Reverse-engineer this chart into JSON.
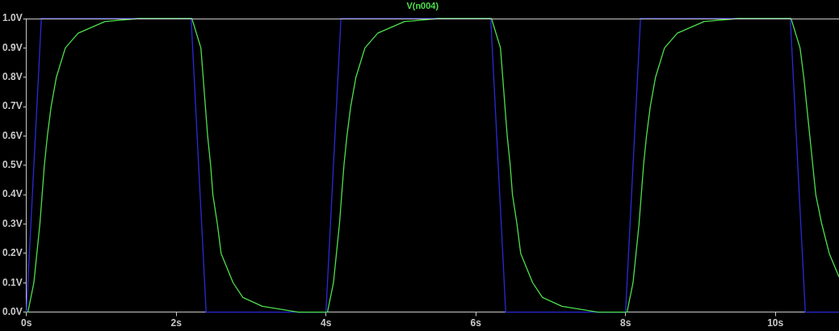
{
  "chart_data": {
    "type": "line",
    "xlim": [
      0,
      10.85
    ],
    "xticks": [
      {
        "value": 0,
        "label": "0s"
      },
      {
        "value": 2,
        "label": "2s"
      },
      {
        "value": 4,
        "label": "4s"
      },
      {
        "value": 6,
        "label": "6s"
      },
      {
        "value": 8,
        "label": "8s"
      },
      {
        "value": 10,
        "label": "10s"
      }
    ],
    "ylim": [
      0,
      1
    ],
    "yticks": [
      {
        "value": 0,
        "label": "0.0V"
      },
      {
        "value": 0.1,
        "label": "0.1V"
      },
      {
        "value": 0.2,
        "label": "0.2V"
      },
      {
        "value": 0.3,
        "label": "0.3V"
      },
      {
        "value": 0.4,
        "label": "0.4V"
      },
      {
        "value": 0.5,
        "label": "0.5V"
      },
      {
        "value": 0.6,
        "label": "0.6V"
      },
      {
        "value": 0.7,
        "label": "0.7V"
      },
      {
        "value": 0.8,
        "label": "0.8V"
      },
      {
        "value": 0.9,
        "label": "0.9V"
      },
      {
        "value": 1,
        "label": "1.0V"
      }
    ],
    "grid": false,
    "legend": "top",
    "marker": "none",
    "line_style": "solid",
    "series": [
      {
        "color": "#2a2ad8",
        "x": [
          0,
          0.2,
          2.2,
          2.4,
          4.0,
          4.2,
          6.2,
          6.4,
          8.0,
          8.2,
          10.2,
          10.4,
          10.85
        ],
        "values": [
          0,
          1,
          1,
          0,
          0,
          1,
          1,
          0,
          0,
          1,
          1,
          0,
          0
        ]
      },
      {
        "name": "V(n004)",
        "color": "#4ddf4d",
        "x": [
          0,
          0.02,
          0.1,
          0.14,
          0.18,
          0.21,
          0.24,
          0.28,
          0.33,
          0.4,
          0.52,
          0.69,
          1.05,
          1.5,
          2.21,
          2.33,
          2.36,
          2.39,
          2.42,
          2.46,
          2.49,
          2.55,
          2.6,
          2.76,
          2.89,
          3.15,
          3.63,
          4.02,
          4.1,
          4.14,
          4.18,
          4.21,
          4.24,
          4.28,
          4.33,
          4.4,
          4.52,
          4.69,
          5.05,
          5.5,
          6.21,
          6.33,
          6.36,
          6.39,
          6.42,
          6.46,
          6.49,
          6.55,
          6.6,
          6.76,
          6.89,
          7.15,
          7.63,
          8.02,
          8.1,
          8.14,
          8.18,
          8.21,
          8.24,
          8.28,
          8.33,
          8.4,
          8.52,
          8.69,
          9.05,
          9.5,
          10.21,
          10.33,
          10.38,
          10.42,
          10.46,
          10.5,
          10.54,
          10.62,
          10.72,
          10.85
        ],
        "values": [
          0,
          0,
          0.1,
          0.2,
          0.3,
          0.4,
          0.5,
          0.6,
          0.7,
          0.8,
          0.9,
          0.95,
          0.99,
          1,
          1,
          0.9,
          0.8,
          0.7,
          0.6,
          0.5,
          0.4,
          0.3,
          0.2,
          0.1,
          0.05,
          0.02,
          0,
          0,
          0.1,
          0.2,
          0.3,
          0.4,
          0.5,
          0.6,
          0.7,
          0.8,
          0.9,
          0.95,
          0.99,
          1,
          1,
          0.9,
          0.8,
          0.7,
          0.6,
          0.5,
          0.4,
          0.3,
          0.2,
          0.1,
          0.05,
          0.02,
          0,
          0,
          0.1,
          0.2,
          0.3,
          0.4,
          0.5,
          0.6,
          0.7,
          0.8,
          0.9,
          0.95,
          0.99,
          1,
          1,
          0.9,
          0.8,
          0.7,
          0.6,
          0.5,
          0.4,
          0.3,
          0.2,
          0.12
        ]
      }
    ]
  }
}
